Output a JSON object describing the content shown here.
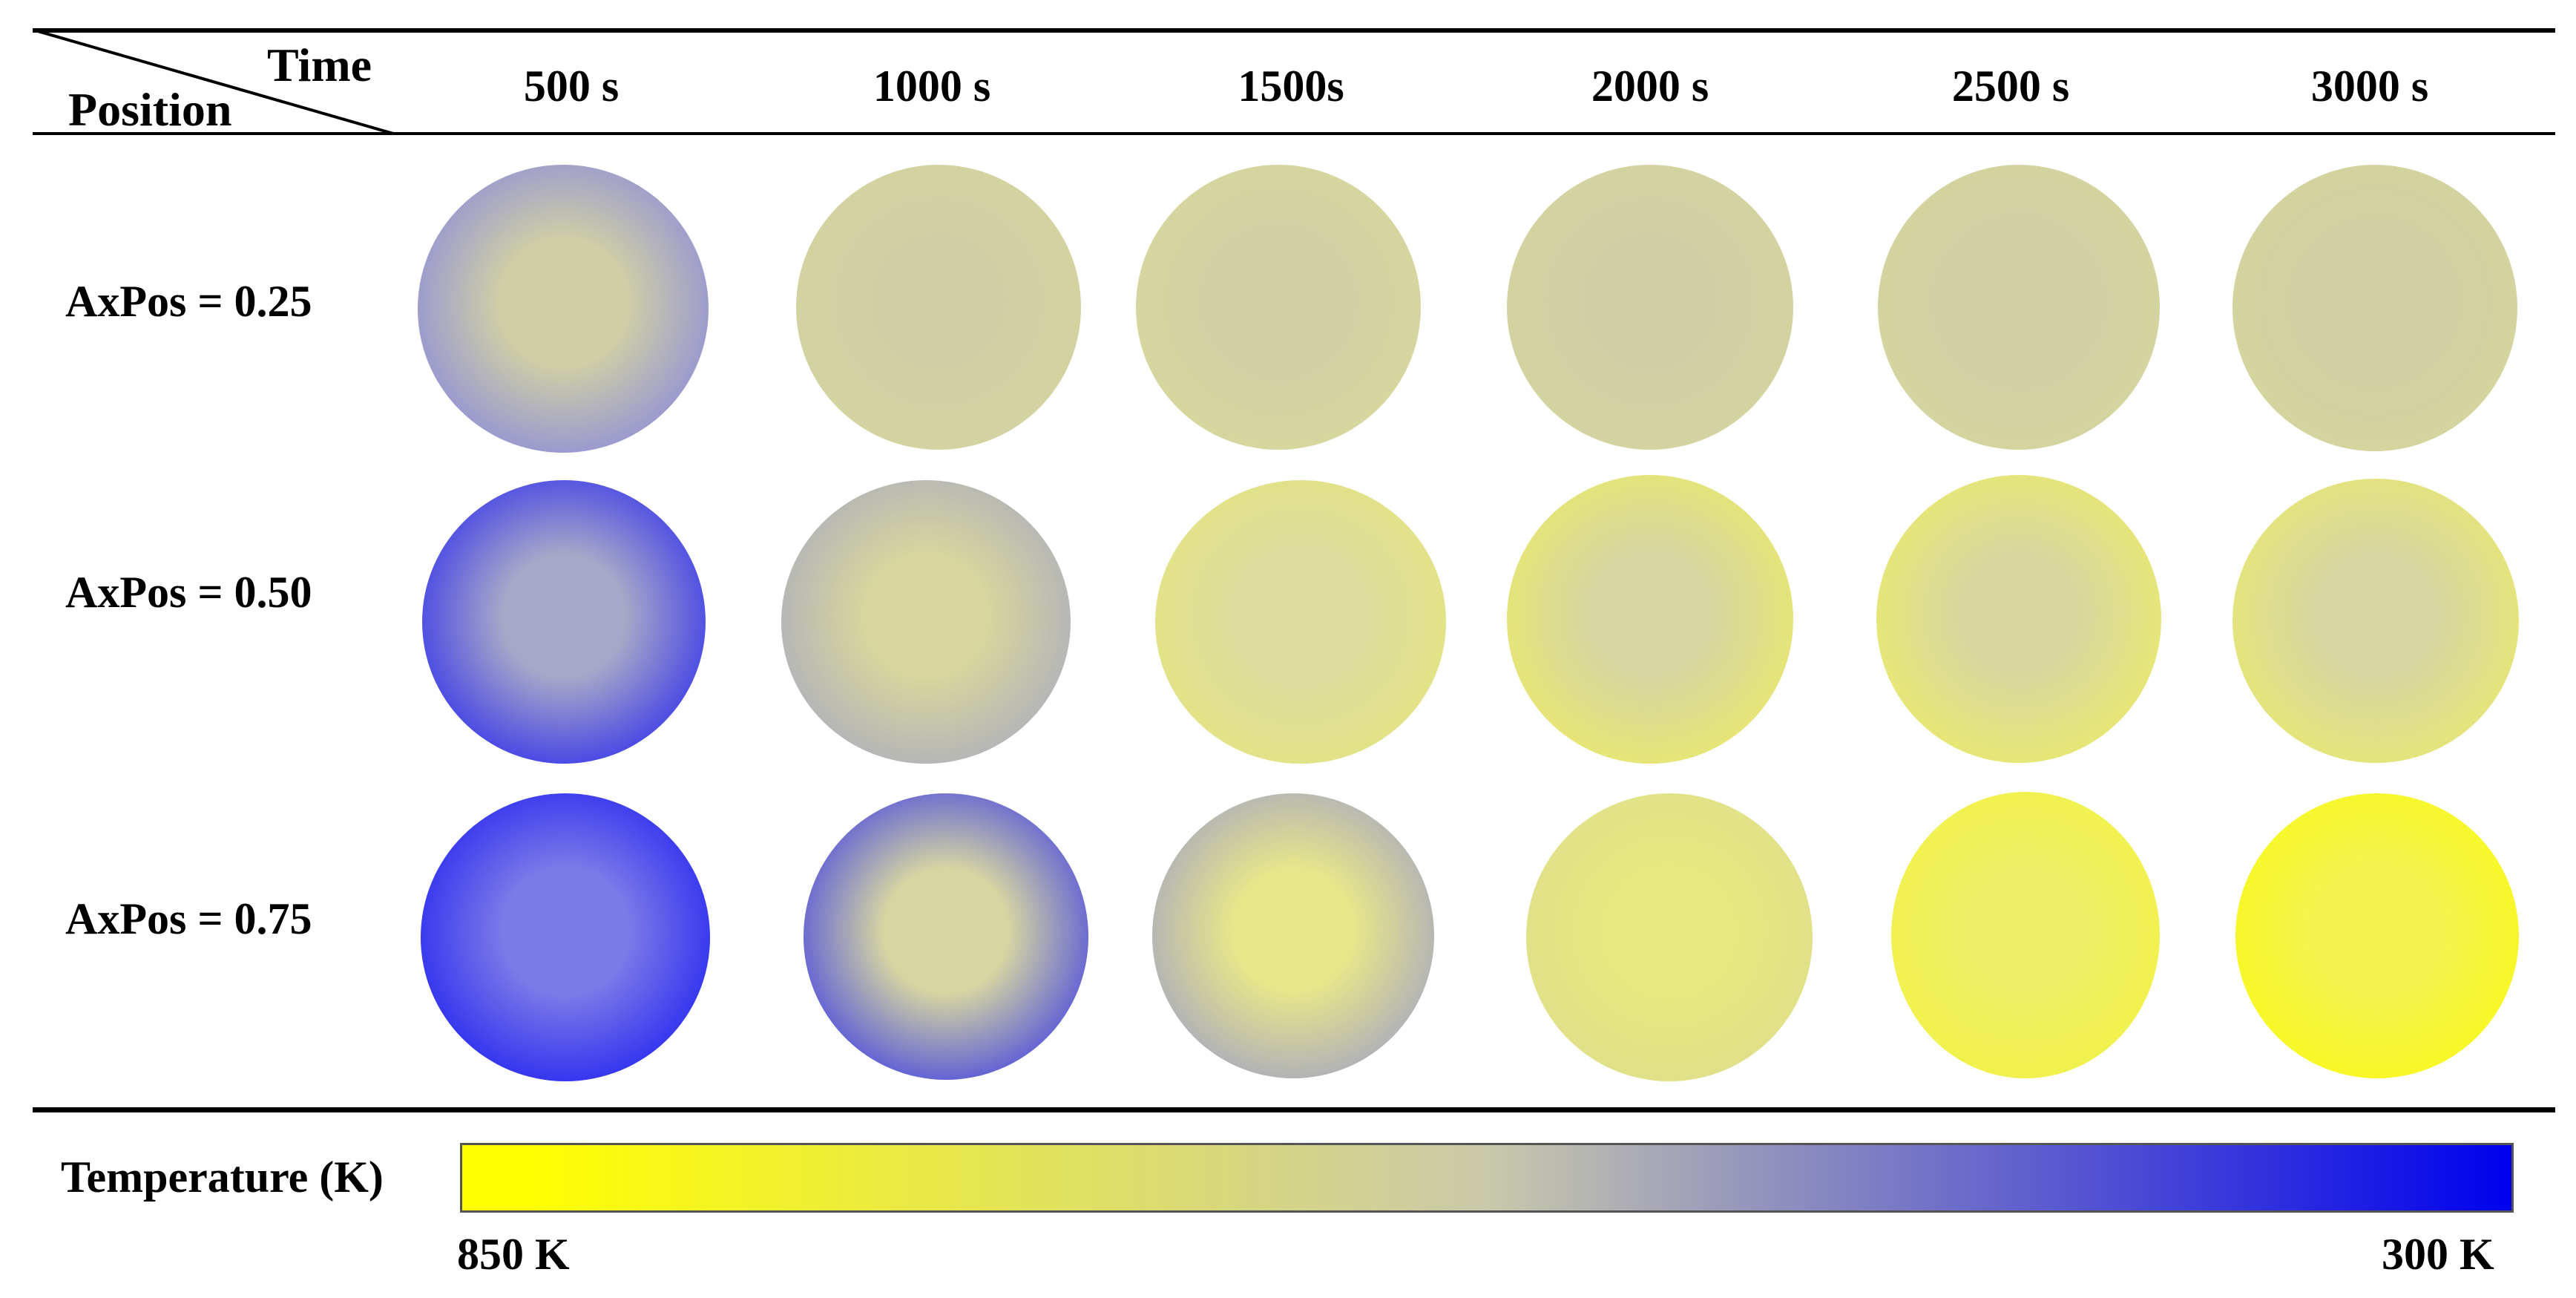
{
  "header": {
    "time_label": "Time",
    "position_label": "Position",
    "columns": [
      "500 s",
      "1000 s",
      "1500s",
      "2000 s",
      "2500 s",
      "3000 s"
    ]
  },
  "rows": [
    {
      "label": "AxPos = 0.25",
      "cells": [
        {
          "center": "#cfcfa6",
          "edge": "#7d7be5"
        },
        {
          "center": "#cfcfa5",
          "edge": "#d6d6a0"
        },
        {
          "center": "#d0d0a4",
          "edge": "#d9d99c"
        },
        {
          "center": "#cfcfa6",
          "edge": "#d6d69e"
        },
        {
          "center": "#d0d0a5",
          "edge": "#d6d69c"
        },
        {
          "center": "#d0d0a4",
          "edge": "#d6d69c"
        }
      ]
    },
    {
      "label": "AxPos = 0.50",
      "cells": [
        {
          "center": "#a7a7c8",
          "edge": "#1717f5"
        },
        {
          "center": "#d6d69e",
          "edge": "#a3a3c5"
        },
        {
          "center": "#dcdc9e",
          "edge": "#e6e67a"
        },
        {
          "center": "#d6d6a0",
          "edge": "#eeee60"
        },
        {
          "center": "#d8d89e",
          "edge": "#efef60"
        },
        {
          "center": "#d6d6a0",
          "edge": "#eded68"
        }
      ]
    },
    {
      "label": "AxPos = 0.75",
      "cells": [
        {
          "center": "#7b7be8",
          "edge": "#0f0ff5"
        },
        {
          "center": "#d6d6a2",
          "edge": "#2424f0"
        },
        {
          "center": "#e6e68a",
          "edge": "#9696cf"
        },
        {
          "center": "#e8e880",
          "edge": "#dcdc8e"
        },
        {
          "center": "#eeee66",
          "edge": "#f3f340"
        },
        {
          "center": "#f3f350",
          "edge": "#fafa10"
        }
      ]
    }
  ],
  "legend": {
    "title": "Temperature (K)",
    "max_label": "850 K",
    "min_label": "300 K",
    "colors": {
      "hot": "#ffff00",
      "mid": "#c9c9ab",
      "cold": "#0000ee"
    }
  }
}
